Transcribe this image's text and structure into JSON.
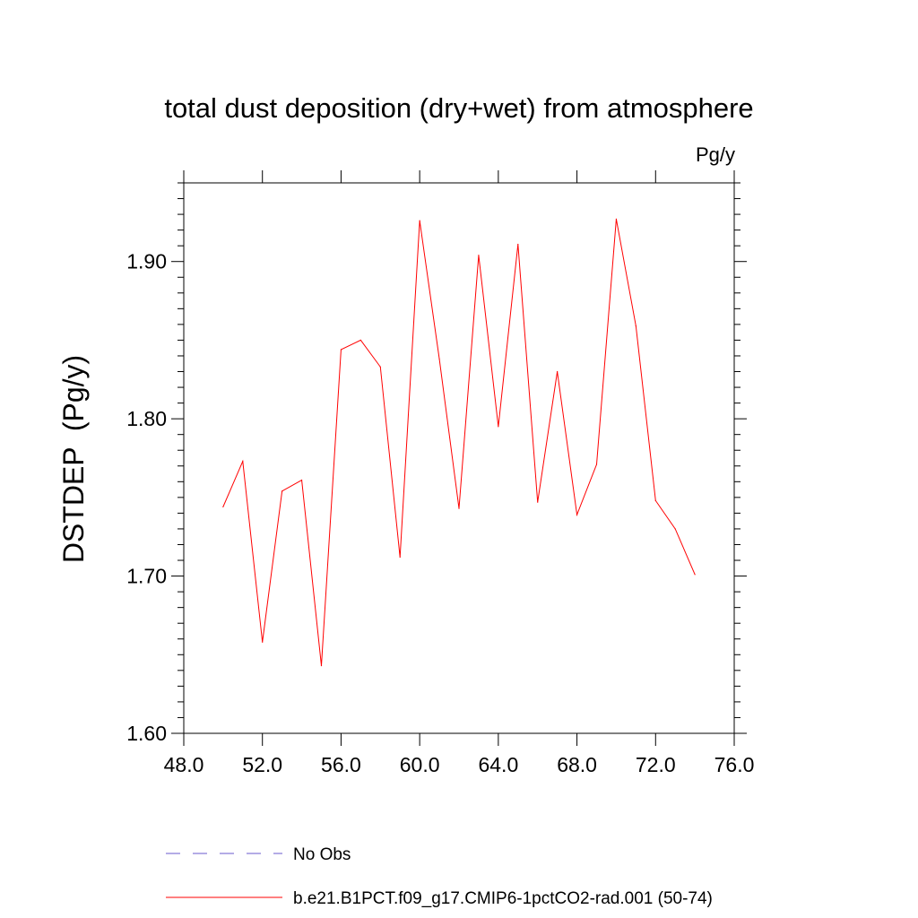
{
  "chart_data": {
    "type": "line",
    "title": "total dust deposition (dry+wet) from atmosphere",
    "units_label": "Pg/y",
    "xlabel": "",
    "ylabel": "DSTDEP  (Pg/y)",
    "xlim": [
      48.0,
      76.0
    ],
    "ylim": [
      1.6,
      1.95
    ],
    "x_ticks": [
      48.0,
      52.0,
      56.0,
      60.0,
      64.0,
      68.0,
      72.0,
      76.0
    ],
    "x_tick_labels": [
      "48.0",
      "52.0",
      "56.0",
      "60.0",
      "64.0",
      "68.0",
      "72.0",
      "76.0"
    ],
    "y_ticks": [
      1.6,
      1.7,
      1.8,
      1.9
    ],
    "y_tick_labels": [
      "1.60",
      "1.70",
      "1.80",
      "1.90"
    ],
    "grid": false,
    "legend_position": "bottom",
    "series": [
      {
        "name": "b.e21.B1PCT.f09_g17.CMIP6-1pctCO2-rad.001 (50-74)",
        "color": "#ff0000",
        "style": "solid",
        "x": [
          50,
          51,
          52,
          53,
          54,
          55,
          56,
          57,
          58,
          59,
          60,
          61,
          62,
          63,
          64,
          65,
          66,
          67,
          68,
          69,
          70,
          71,
          72,
          73,
          74
        ],
        "y": [
          1.744,
          1.773,
          1.658,
          1.754,
          1.761,
          1.643,
          1.844,
          1.85,
          1.833,
          1.712,
          1.926,
          1.838,
          1.743,
          1.904,
          1.795,
          1.911,
          1.747,
          1.83,
          1.739,
          1.771,
          1.927,
          1.859,
          1.748,
          1.73,
          1.701
        ]
      },
      {
        "name": "No Obs",
        "color": "#6a5acd",
        "style": "dashed",
        "x": [],
        "y": []
      }
    ]
  }
}
